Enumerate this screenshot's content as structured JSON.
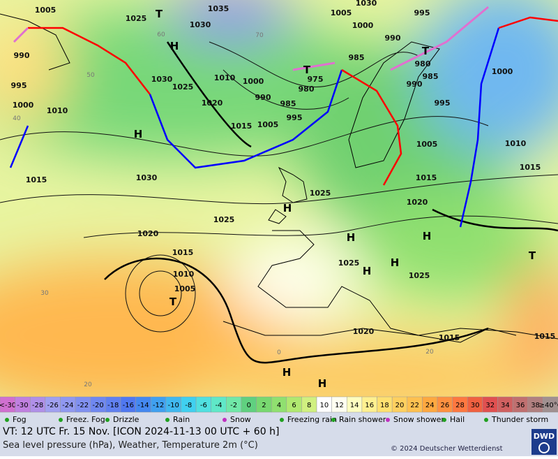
{
  "map": {
    "pressure_labels": [
      "1005",
      "1025",
      "1035",
      "1030",
      "1030",
      "1005",
      "1000",
      "995",
      "990",
      "985",
      "980",
      "985",
      "990",
      "1000",
      "995",
      "975",
      "980",
      "1000",
      "990",
      "985",
      "995",
      "1005",
      "1015",
      "1010",
      "1030",
      "1025",
      "1020",
      "990",
      "995",
      "1000",
      "1010",
      "1015",
      "1030",
      "1025",
      "1020",
      "1015",
      "1010",
      "1005",
      "1025",
      "1015",
      "1020",
      "1025",
      "1025",
      "1020",
      "1015",
      "1015",
      "1010",
      "1005",
      "1015"
    ],
    "pressure_centers": [
      "H",
      "H",
      "H",
      "H",
      "H",
      "H",
      "H",
      "H",
      "T",
      "T",
      "T",
      "T",
      "T",
      "H"
    ],
    "temperature_labels": [
      "60",
      "70",
      "50",
      "40",
      "30",
      "20",
      "0",
      "20"
    ]
  },
  "color_scale": {
    "labels": [
      "<-30",
      "-30",
      "-28",
      "-26",
      "-24",
      "-22",
      "-20",
      "-18",
      "-16",
      "-14",
      "-12",
      "-10",
      "-8",
      "-6",
      "-4",
      "-2",
      "0",
      "2",
      "4",
      "6",
      "8",
      "10",
      "12",
      "14",
      "16",
      "18",
      "20",
      "22",
      "24",
      "26",
      "28",
      "30",
      "32",
      "34",
      "36",
      "38",
      "≥40°C"
    ],
    "colors": [
      "#d070d0",
      "#c080e0",
      "#b090e8",
      "#a0a0f0",
      "#9098f0",
      "#8090f0",
      "#7088f0",
      "#6080f0",
      "#5078f0",
      "#4488f0",
      "#40a0f0",
      "#40b8f0",
      "#40d0f0",
      "#50e0e0",
      "#60e8c8",
      "#70e8a8",
      "#60d080",
      "#78d870",
      "#90e070",
      "#b0e870",
      "#d0f080",
      "#ffffff",
      "#fffff0",
      "#ffffc0",
      "#fff090",
      "#ffe070",
      "#ffd060",
      "#ffc050",
      "#ffa840",
      "#ff9040",
      "#ff7840",
      "#f06040",
      "#e05050",
      "#d06060",
      "#c07070",
      "#b08080",
      "#a09090"
    ]
  },
  "legend": [
    "Fog",
    "Freez. Fog",
    "Drizzle",
    "Rain",
    "Snow",
    "Freezing rain",
    "Rain shower",
    "Snow shower",
    "Hail",
    "Thunder storm"
  ],
  "footer": {
    "valid_time": "VT: 12 UTC Fr.  15 Nov. [ICON 2024-11-13  00 UTC + 60 h]",
    "description": "Sea level pressure (hPa), Weather, Temperature 2m (°C)",
    "copyright": "© 2024 Deutscher Wetterdienst",
    "logo": "DWD"
  }
}
